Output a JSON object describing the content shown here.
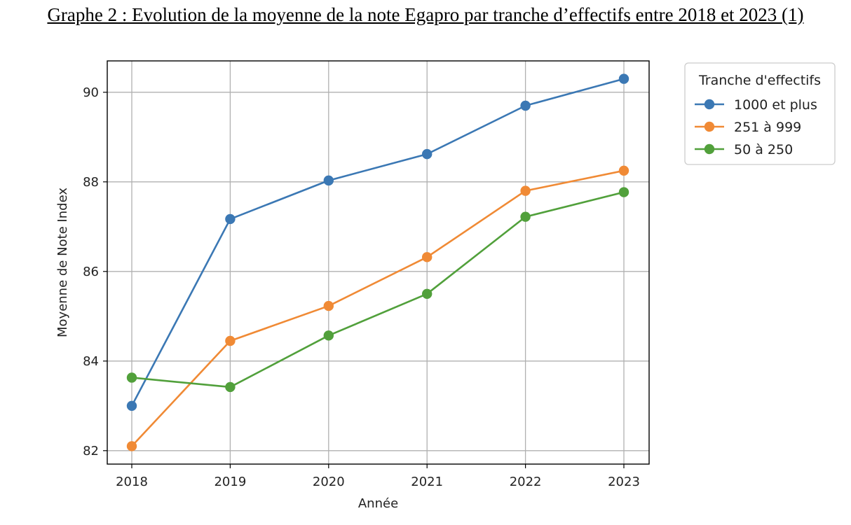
{
  "page_title": "Graphe 2 : Evolution de la moyenne de la note Egapro par tranche d’effectifs entre 2018 et 2023 (1)",
  "chart_data": {
    "type": "line",
    "x": [
      "2018",
      "2019",
      "2020",
      "2021",
      "2022",
      "2023"
    ],
    "xlabel": "Année",
    "ylabel": "Moyenne de Note Index",
    "ylim": [
      81.7,
      90.7
    ],
    "yticks": [
      "82",
      "84",
      "86",
      "88",
      "90"
    ],
    "grid": true,
    "legend": {
      "title": "Tranche d'effectifs",
      "placement": "outside-right-top"
    },
    "series": [
      {
        "name": "1000 et plus",
        "color": "#3b78b4",
        "values": [
          83.0,
          87.17,
          88.03,
          88.62,
          89.7,
          90.3
        ]
      },
      {
        "name": "251 à 999",
        "color": "#f08a35",
        "values": [
          82.1,
          84.45,
          85.23,
          86.32,
          87.8,
          88.25
        ]
      },
      {
        "name": "50 à 250",
        "color": "#51a03b",
        "values": [
          83.63,
          83.42,
          84.57,
          85.5,
          87.22,
          87.77
        ]
      }
    ]
  }
}
